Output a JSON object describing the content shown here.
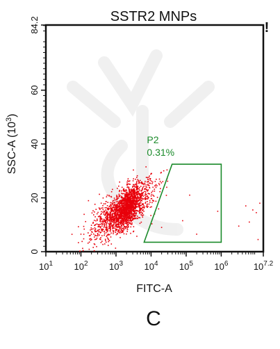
{
  "chart_data": {
    "type": "scatter",
    "title": "SSTR2 MNPs",
    "xlabel": "FITC-A",
    "ylabel": "SSC-A (10^3)",
    "ylabel_parts": {
      "base": "SSC-A  (10",
      "exp": "3",
      "close": ")"
    },
    "x_scale": "log",
    "xlim": [
      1,
      7.2
    ],
    "ylim": [
      0,
      84.2
    ],
    "x_ticks": [
      {
        "value": 1,
        "base": "10",
        "exp": "1"
      },
      {
        "value": 2,
        "base": "10",
        "exp": "2"
      },
      {
        "value": 3,
        "base": "10",
        "exp": "3"
      },
      {
        "value": 4,
        "base": "10",
        "exp": "4"
      },
      {
        "value": 5,
        "base": "10",
        "exp": "5"
      },
      {
        "value": 6,
        "base": "10",
        "exp": "6"
      },
      {
        "value": 7.2,
        "base": "10",
        "exp": "7.2"
      }
    ],
    "y_ticks": [
      {
        "value": 0,
        "label": "0"
      },
      {
        "value": 20,
        "label": "20"
      },
      {
        "value": 40,
        "label": "40"
      },
      {
        "value": 60,
        "label": "60"
      },
      {
        "value": 84.2,
        "label": "84.2"
      }
    ],
    "point_color": "#e8000b",
    "gate_color": "#1a8a2a",
    "gate": {
      "name": "P2",
      "percent": "0.31%",
      "vertices": [
        [
          3.8,
          3.5
        ],
        [
          4.6,
          32.5
        ],
        [
          6.0,
          32.5
        ],
        [
          6.0,
          3.5
        ]
      ]
    },
    "main_population": {
      "center": [
        3.2,
        15.5
      ],
      "description_points": [
        [
          2.3,
          9.8
        ],
        [
          2.6,
          12.0
        ],
        [
          2.9,
          14.2
        ],
        [
          3.1,
          16.0
        ],
        [
          3.3,
          18.5
        ],
        [
          3.5,
          21.0
        ],
        [
          3.6,
          23.4
        ],
        [
          2.0,
          6.5
        ],
        [
          2.4,
          17.6
        ],
        [
          2.7,
          4.1
        ],
        [
          3.4,
          25.0
        ],
        [
          3.7,
          19.8
        ],
        [
          3.0,
          10.2
        ],
        [
          2.8,
          20.9
        ],
        [
          3.6,
          12.5
        ]
      ]
    },
    "scattered_points": [
      [
        4.1,
        14.0
      ],
      [
        4.3,
        9.0
      ],
      [
        4.9,
        11.5
      ],
      [
        5.1,
        21.0
      ],
      [
        5.9,
        15.0
      ],
      [
        5.3,
        6.5
      ],
      [
        6.7,
        17.0
      ],
      [
        6.9,
        15.5
      ],
      [
        7.0,
        14.5
      ],
      [
        6.5,
        9.5
      ],
      [
        6.8,
        11.0
      ],
      [
        7.1,
        18.0
      ],
      [
        7.05,
        4.5
      ]
    ],
    "footer_label": "C",
    "corner_mark": "!"
  }
}
